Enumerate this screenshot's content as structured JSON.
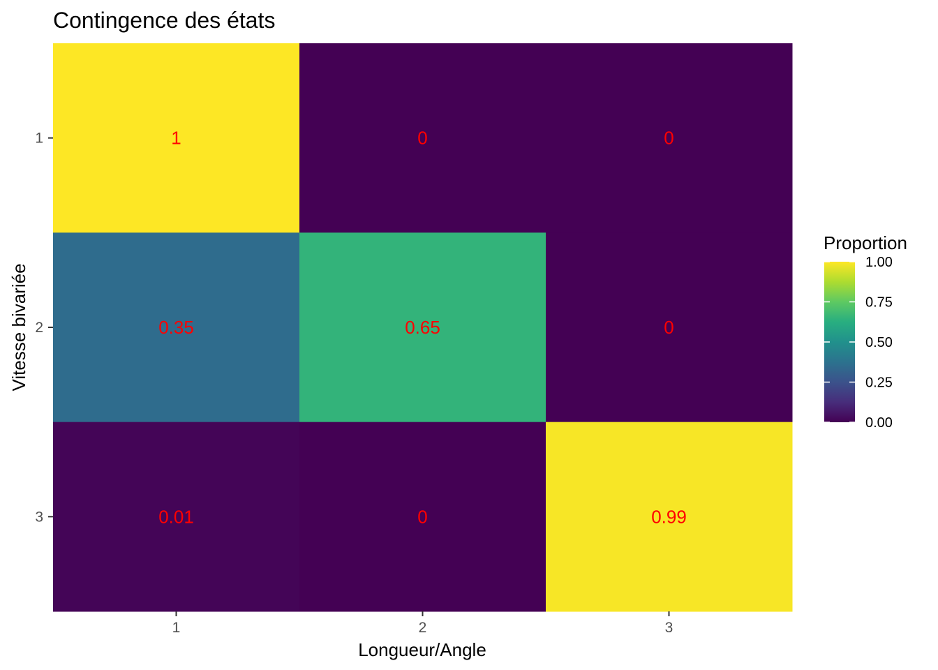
{
  "chart_data": {
    "type": "heatmap",
    "title": "Contingence des états",
    "xlabel": "Longueur/Angle",
    "ylabel": "Vitesse bivariée",
    "x_categories": [
      "1",
      "2",
      "3"
    ],
    "y_categories": [
      "1",
      "2",
      "3"
    ],
    "values": [
      [
        1,
        0,
        0
      ],
      [
        0.35,
        0.65,
        0
      ],
      [
        0.01,
        0,
        0.99
      ]
    ],
    "cell_labels": [
      [
        "1",
        "0",
        "0"
      ],
      [
        "0.35",
        "0.65",
        "0"
      ],
      [
        "0.01",
        "0",
        "0.99"
      ]
    ],
    "label_color": "#ff0000",
    "legend": {
      "title": "Proportion",
      "placement": "right",
      "range": [
        0,
        1
      ],
      "ticks": [
        0,
        0.25,
        0.5,
        0.75,
        1
      ],
      "tick_labels": [
        "0.00",
        "0.25",
        "0.50",
        "0.75",
        "1.00"
      ]
    },
    "colormap": "viridis",
    "grid": false
  }
}
